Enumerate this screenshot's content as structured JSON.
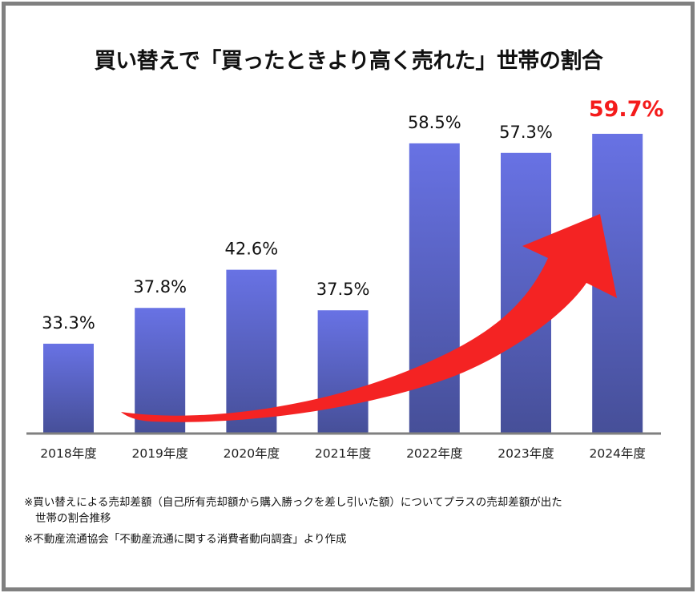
{
  "chart_data": {
    "type": "bar",
    "title": "買い替えで「買ったときより高く売れた」世帯の割合",
    "xlabel": "",
    "ylabel": "",
    "categories": [
      "2018年度",
      "2019年度",
      "2020年度",
      "2021年度",
      "2022年度",
      "2023年度",
      "2024年度"
    ],
    "values": [
      33.3,
      37.8,
      42.6,
      37.5,
      58.5,
      57.3,
      59.7
    ],
    "value_labels": [
      "33.3%",
      "37.8%",
      "42.6%",
      "37.5%",
      "58.5%",
      "57.3%",
      "59.7%"
    ],
    "unit": "%",
    "highlight_index": 6,
    "ylim": [
      22,
      60
    ],
    "grid": false,
    "y_axis_visible": false,
    "annotations": [
      {
        "type": "trend-arrow",
        "description": "red curved upward arrow from 2019 to 2024"
      }
    ]
  },
  "colors": {
    "bar_top": "#6872e4",
    "bar_bottom": "#464f98",
    "highlight_label": "#f41b1b",
    "arrow": "#f42323",
    "axis": "#808080",
    "frame": "#808080"
  },
  "notes": [
    {
      "line1": "※買い替えによる売却差額（自己所有売却額から購入勝っクを差し引いた額）についてプラスの売却差額が出た",
      "line2": "世帯の割合推移"
    },
    {
      "line1": "※不動産流通協会「不動産流通に関する消費者動向調査」より作成",
      "line2": ""
    }
  ]
}
